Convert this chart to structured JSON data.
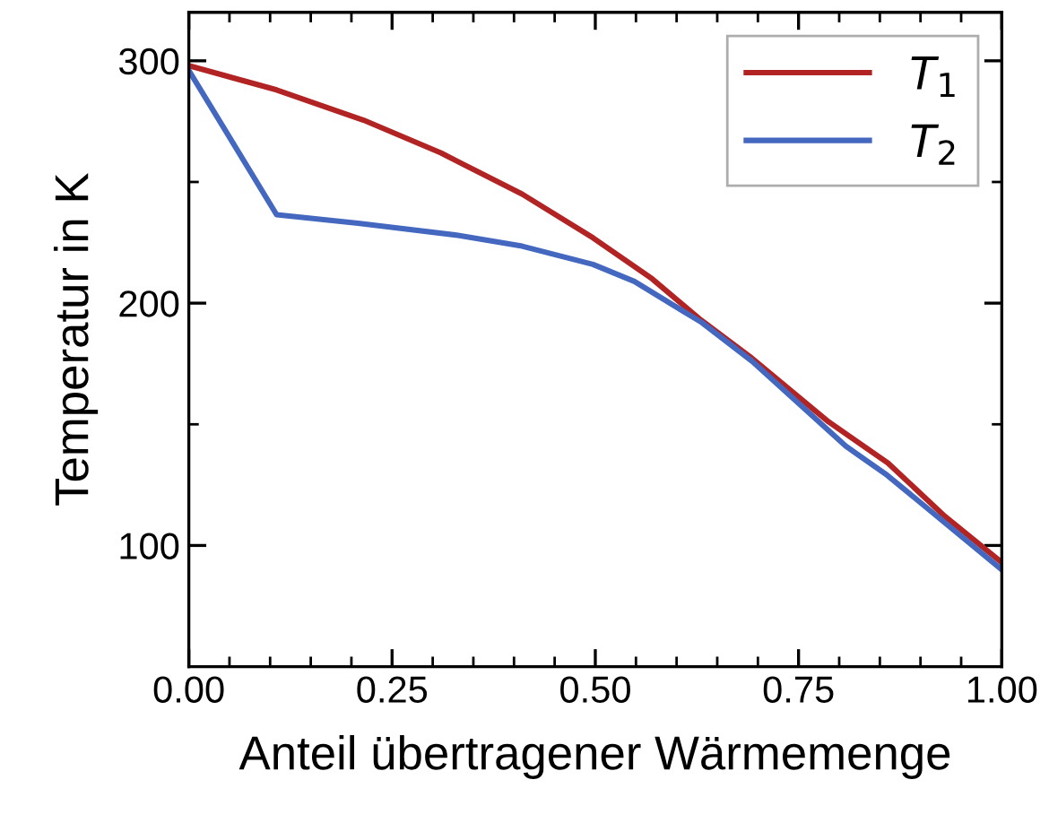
{
  "chart_data": {
    "type": "line",
    "xlabel": "Anteil übertragener Wärmemenge",
    "ylabel": "Temperatur in K",
    "xlim": [
      0,
      1
    ],
    "xticks": [
      {
        "value": 0,
        "label": "0.00"
      },
      {
        "value": 0.25,
        "label": "0.25"
      },
      {
        "value": 0.5,
        "label": "0.50"
      },
      {
        "value": 0.75,
        "label": "0.75"
      },
      {
        "value": 1,
        "label": "1.00"
      }
    ],
    "ylim": [
      50,
      320
    ],
    "yticks": [
      100,
      200,
      300
    ],
    "legend": "top right",
    "grid": false,
    "marker": "none",
    "line_style": "solid",
    "series": [
      {
        "name": "T$_{1}$",
        "color": "#b22424",
        "x": [
          0,
          0.108,
          0.215,
          0.31,
          0.41,
          0.497,
          0.57,
          0.63,
          0.69,
          0.787,
          0.86,
          0.93,
          1.0
        ],
        "values": [
          298,
          288,
          275.5,
          262,
          245,
          227,
          210,
          193,
          178,
          151,
          134,
          112,
          93
        ]
      },
      {
        "name": "T$_{2}$",
        "color": "#4468bf",
        "x": [
          0,
          0.108,
          0.208,
          0.331,
          0.41,
          0.497,
          0.548,
          0.631,
          0.693,
          0.808,
          0.859,
          1.0
        ],
        "values": [
          296,
          236.5,
          233,
          228,
          223.5,
          216,
          209,
          192,
          176,
          141,
          129,
          90
        ]
      }
    ]
  }
}
